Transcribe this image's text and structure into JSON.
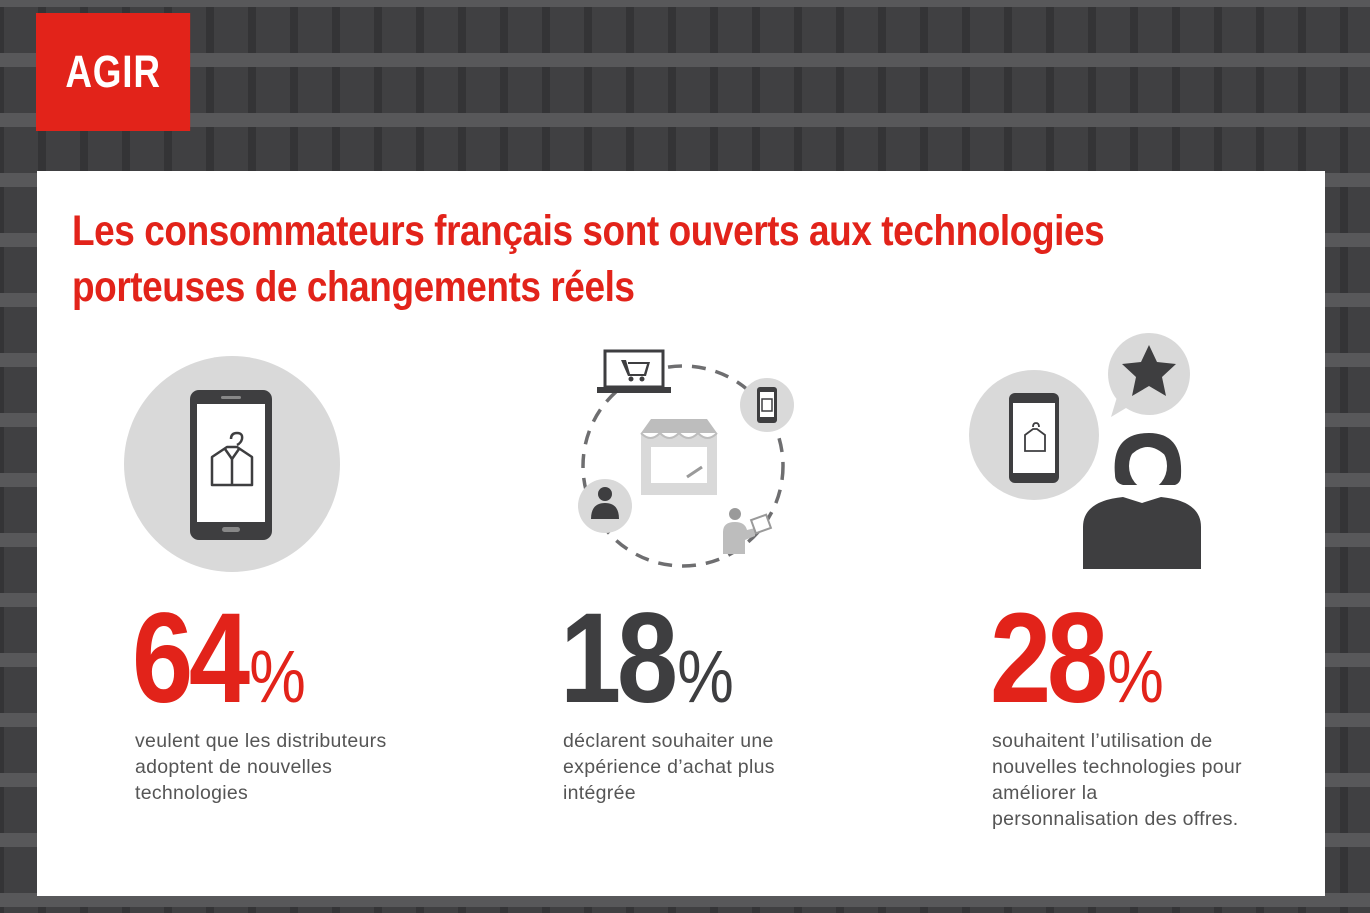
{
  "badge": {
    "label": "AGIR"
  },
  "headline": {
    "line1": "Les consommateurs français sont ouverts aux technologies",
    "line2": "porteuses de changements réels"
  },
  "stats": [
    {
      "number": "64",
      "unit": "%",
      "description": "veulent que les distributeurs adoptent de nouvelles technologies",
      "color": "#e2231a",
      "icon": "smartphone-clothing-icon"
    },
    {
      "number": "18",
      "unit": "%",
      "description": "déclarent souhaiter une expérience d’achat plus intégrée",
      "color": "#3e3e40",
      "icon": "omnichannel-cycle-icon"
    },
    {
      "number": "28",
      "unit": "%",
      "description": "souhaitent l’utilisation de nouvelles technologies pour améliorer la personnalisation des offres.",
      "color": "#e2231a",
      "icon": "personalized-offer-icon"
    }
  ],
  "colors": {
    "accent": "#e2231a",
    "dark": "#3e3e40",
    "light_grey": "#d9d9d9"
  }
}
